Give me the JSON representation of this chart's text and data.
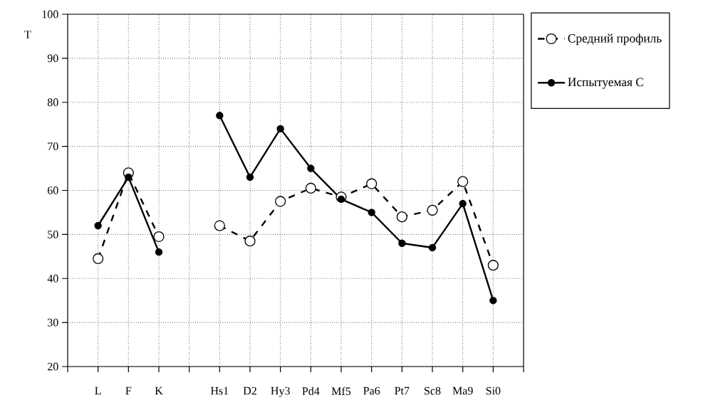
{
  "chart_data": {
    "type": "line",
    "ylabel": "T",
    "categories": [
      "L",
      "F",
      "K",
      null,
      "Hs1",
      "D2",
      "Hy3",
      "Pd4",
      "Mf5",
      "Pa6",
      "Pt7",
      "Sc8",
      "Ma9",
      "Si0"
    ],
    "series": [
      {
        "name": "Средний профиль",
        "color": "#000000",
        "line_style": "dashed",
        "marker": "circle",
        "values": [
          44.5,
          64,
          49.5,
          null,
          52,
          48.5,
          57.5,
          60.5,
          58.5,
          61.5,
          54,
          55.5,
          62,
          43
        ]
      },
      {
        "name": "Испытуемая С",
        "color": "#000000",
        "line_style": "solid",
        "marker": "circle",
        "values": [
          52,
          63,
          46,
          null,
          77,
          63,
          74,
          65,
          58,
          55,
          48,
          47,
          57,
          35
        ]
      }
    ],
    "ylim": [
      20,
      100
    ],
    "yticks": [
      20,
      30,
      40,
      50,
      60,
      70,
      80,
      90,
      100
    ],
    "grid": true,
    "legend": "top right"
  }
}
